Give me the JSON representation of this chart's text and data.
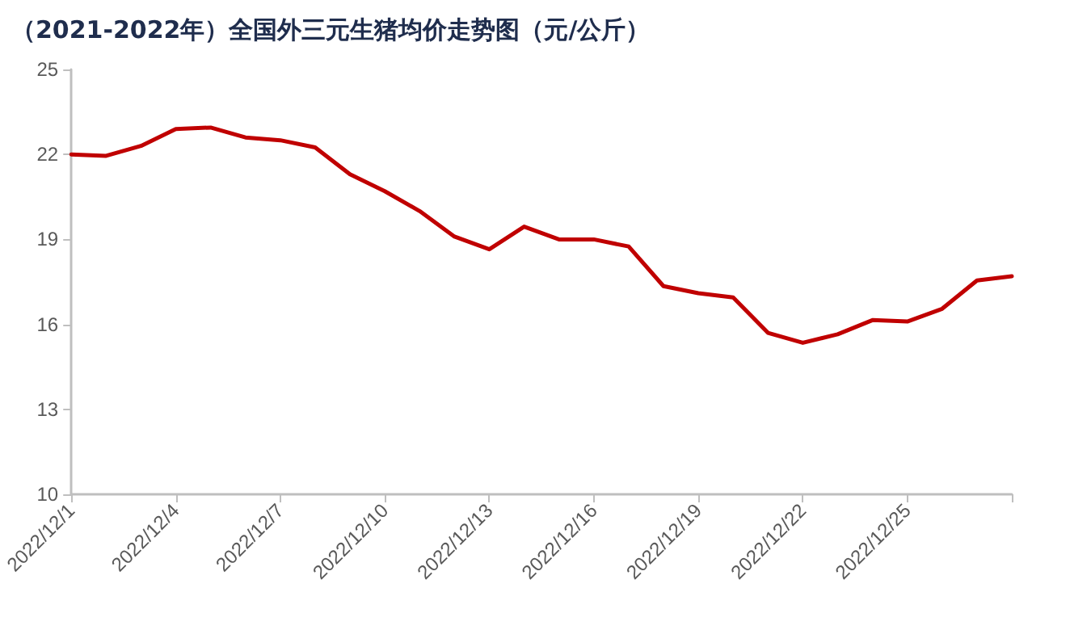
{
  "chart_data": {
    "type": "line",
    "title": "（2021-2022年）全国外三元生猪均价走势图（元/公斤）",
    "categories": [
      "2022/12/1",
      null,
      null,
      "2022/12/4",
      null,
      null,
      "2022/12/7",
      null,
      null,
      "2022/12/10",
      null,
      null,
      "2022/12/13",
      null,
      null,
      "2022/12/16",
      null,
      null,
      "2022/12/19",
      null,
      null,
      "2022/12/22",
      null,
      null,
      "2022/12/25",
      null,
      null,
      null
    ],
    "series": [
      {
        "color": "#c00000",
        "values": [
          22.0,
          21.95,
          22.3,
          22.9,
          22.95,
          22.6,
          22.5,
          22.25,
          21.3,
          20.7,
          20.0,
          19.1,
          18.65,
          19.45,
          19.0,
          19.0,
          18.75,
          17.35,
          17.1,
          16.95,
          15.7,
          15.35,
          15.65,
          16.15,
          16.1,
          16.55,
          17.55,
          17.7
        ]
      }
    ],
    "ylim": [
      10,
      25
    ],
    "yticks": [
      10,
      13,
      16,
      19,
      22,
      25
    ],
    "grid": false,
    "marker": "none",
    "line_style": "solid"
  }
}
